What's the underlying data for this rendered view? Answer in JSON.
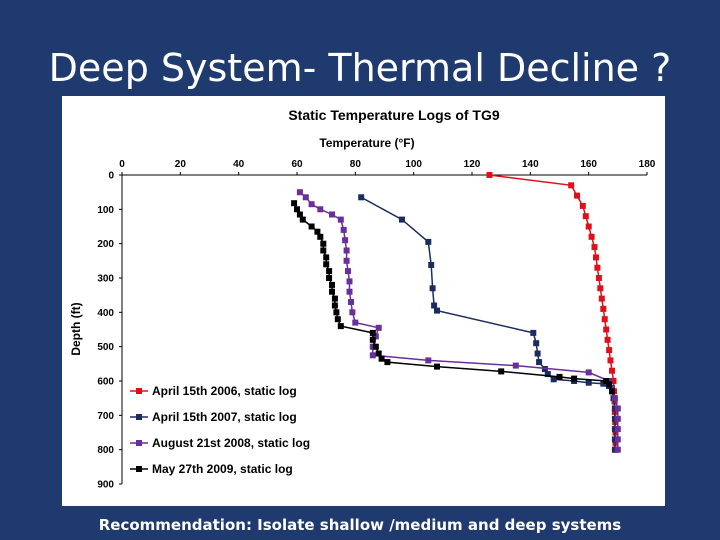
{
  "slide": {
    "title": "Deep System- Thermal Decline ?",
    "footer": "Recommendation: Isolate shallow /medium and deep systems"
  },
  "chart_data": {
    "type": "line",
    "title": "Static Temperature Logs of TG9",
    "xlabel": "Temperature (°F)",
    "ylabel": "Depth (ft)",
    "x_axis_position": "top",
    "y_axis_inverted": true,
    "xlim": [
      0,
      180
    ],
    "ylim": [
      0,
      900
    ],
    "x_ticks": [
      "0",
      "20",
      "40",
      "60",
      "80",
      "100",
      "120",
      "140",
      "160",
      "180"
    ],
    "y_ticks": [
      "0",
      "100",
      "200",
      "300",
      "400",
      "500",
      "600",
      "700",
      "800",
      "900"
    ],
    "grid": false,
    "legend_position": "bottom-left",
    "series": [
      {
        "name": "April 15th 2006, static log",
        "color": "#e0101a",
        "points": [
          [
            126,
            0
          ],
          [
            154,
            30
          ],
          [
            156,
            60
          ],
          [
            158,
            90
          ],
          [
            159,
            120
          ],
          [
            160,
            150
          ],
          [
            161,
            180
          ],
          [
            162,
            210
          ],
          [
            162.5,
            240
          ],
          [
            163,
            270
          ],
          [
            163.5,
            300
          ],
          [
            164,
            330
          ],
          [
            164.5,
            360
          ],
          [
            165,
            390
          ],
          [
            165.5,
            420
          ],
          [
            166,
            450
          ],
          [
            166.5,
            480
          ],
          [
            167,
            510
          ],
          [
            167.5,
            540
          ],
          [
            168,
            570
          ],
          [
            168.5,
            600
          ],
          [
            168.7,
            630
          ],
          [
            168.9,
            660
          ],
          [
            169,
            690
          ],
          [
            169.1,
            720
          ],
          [
            169.2,
            750
          ],
          [
            169.2,
            780
          ],
          [
            169.2,
            800
          ]
        ]
      },
      {
        "name": "April 15th 2007, static log",
        "color": "#1b2c5e",
        "points": [
          [
            82,
            65
          ],
          [
            96,
            130
          ],
          [
            105,
            195
          ],
          [
            106,
            262
          ],
          [
            106.5,
            330
          ],
          [
            107,
            380
          ],
          [
            108,
            395
          ],
          [
            141,
            460
          ],
          [
            142,
            490
          ],
          [
            142.5,
            520
          ],
          [
            143,
            545
          ],
          [
            145,
            565
          ],
          [
            146,
            580
          ],
          [
            148,
            595
          ],
          [
            155,
            600
          ],
          [
            160,
            605
          ],
          [
            165,
            608
          ],
          [
            167,
            615
          ],
          [
            168,
            630
          ],
          [
            168.5,
            650
          ],
          [
            169,
            680
          ],
          [
            169,
            710
          ],
          [
            169,
            740
          ],
          [
            169,
            770
          ],
          [
            169,
            800
          ]
        ]
      },
      {
        "name": "August 21st 2008, static log",
        "color": "#6a2f9a",
        "points": [
          [
            61,
            50
          ],
          [
            63,
            65
          ],
          [
            65,
            85
          ],
          [
            68,
            100
          ],
          [
            72,
            115
          ],
          [
            75,
            130
          ],
          [
            76,
            160
          ],
          [
            76.5,
            190
          ],
          [
            77,
            220
          ],
          [
            77,
            250
          ],
          [
            77.5,
            280
          ],
          [
            78,
            310
          ],
          [
            78,
            340
          ],
          [
            78.5,
            370
          ],
          [
            79,
            400
          ],
          [
            80,
            430
          ],
          [
            88,
            445
          ],
          [
            87,
            470
          ],
          [
            86,
            500
          ],
          [
            86,
            525
          ],
          [
            105,
            540
          ],
          [
            135,
            555
          ],
          [
            160,
            575
          ],
          [
            167,
            600
          ],
          [
            168,
            620
          ],
          [
            169,
            650
          ],
          [
            170,
            680
          ],
          [
            170,
            710
          ],
          [
            170,
            740
          ],
          [
            170,
            770
          ],
          [
            170,
            800
          ]
        ]
      },
      {
        "name": "May 27th 2009, static log",
        "color": "#000000",
        "points": [
          [
            59,
            82
          ],
          [
            60,
            100
          ],
          [
            61,
            115
          ],
          [
            62,
            130
          ],
          [
            65,
            150
          ],
          [
            67,
            165
          ],
          [
            68,
            180
          ],
          [
            69,
            200
          ],
          [
            69,
            220
          ],
          [
            70,
            240
          ],
          [
            70,
            260
          ],
          [
            71,
            280
          ],
          [
            71,
            300
          ],
          [
            72,
            320
          ],
          [
            72,
            340
          ],
          [
            73,
            360
          ],
          [
            73,
            380
          ],
          [
            73.5,
            400
          ],
          [
            74,
            420
          ],
          [
            75,
            440
          ],
          [
            86,
            460
          ],
          [
            86,
            480
          ],
          [
            87,
            500
          ],
          [
            88,
            520
          ],
          [
            89,
            535
          ],
          [
            91,
            545
          ],
          [
            108,
            558
          ],
          [
            130,
            572
          ],
          [
            150,
            588
          ],
          [
            155,
            593
          ],
          [
            166,
            600
          ],
          [
            167,
            610
          ],
          [
            168,
            630
          ]
        ]
      }
    ]
  }
}
